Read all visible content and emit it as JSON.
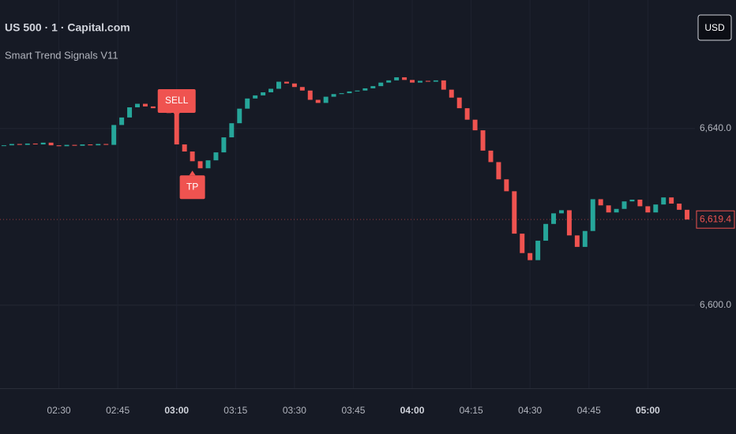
{
  "chart_data": {
    "type": "candlestick",
    "title": "US 500 · 1 · Capital.com",
    "subtitle": "Smart Trend Signals V11",
    "currency": "USD",
    "up_color": "#26a69a",
    "down_color": "#ef5350",
    "x": [
      "02:16",
      "02:18",
      "02:20",
      "02:22",
      "02:24",
      "02:26",
      "02:28",
      "02:30",
      "02:32",
      "02:34",
      "02:36",
      "02:38",
      "02:40",
      "02:42",
      "02:44",
      "02:46",
      "02:48",
      "02:50",
      "02:52",
      "02:54",
      "02:56",
      "02:58",
      "03:00",
      "03:02",
      "03:04",
      "03:06",
      "03:08",
      "03:10",
      "03:12",
      "03:14",
      "03:16",
      "03:18",
      "03:20",
      "03:22",
      "03:24",
      "03:26",
      "03:28",
      "03:30",
      "03:32",
      "03:34",
      "03:36",
      "03:38",
      "03:40",
      "03:42",
      "03:44",
      "03:46",
      "03:48",
      "03:50",
      "03:52",
      "03:54",
      "03:56",
      "03:58",
      "04:00",
      "04:02",
      "04:04",
      "04:06",
      "04:08",
      "04:10",
      "04:12",
      "04:14",
      "04:16",
      "04:18",
      "04:20",
      "04:22",
      "04:24",
      "04:26",
      "04:28",
      "04:30",
      "04:32",
      "04:34",
      "04:36",
      "04:38",
      "04:40",
      "04:42",
      "04:44",
      "04:46",
      "04:48",
      "04:50",
      "04:52",
      "04:54",
      "04:56",
      "04:58",
      "05:00",
      "05:02",
      "05:04",
      "05:06",
      "05:08",
      "05:10"
    ],
    "close": [
      6636.2,
      6636.5,
      6636.3,
      6636.6,
      6636.4,
      6636.8,
      6636.2,
      6636.0,
      6636.3,
      6636.1,
      6636.4,
      6636.2,
      6636.5,
      6636.3,
      6640.8,
      6642.5,
      6644.8,
      6645.6,
      6645.0,
      6644.6,
      6644.2,
      6643.5,
      6636.4,
      6634.8,
      6632.6,
      6631.0,
      6632.8,
      6634.6,
      6638.0,
      6641.2,
      6644.5,
      6646.8,
      6647.5,
      6648.2,
      6649.0,
      6650.6,
      6650.2,
      6649.4,
      6648.6,
      6646.5,
      6645.8,
      6647.2,
      6647.8,
      6648.0,
      6648.4,
      6648.6,
      6649.1,
      6649.6,
      6650.4,
      6650.9,
      6651.6,
      6651.0,
      6650.4,
      6650.8,
      6650.6,
      6650.9,
      6648.8,
      6647.0,
      6644.6,
      6642.0,
      6639.6,
      6635.0,
      6632.4,
      6628.5,
      6625.8,
      6616.2,
      6611.8,
      6610.2,
      6614.6,
      6618.4,
      6620.8,
      6621.5,
      6615.8,
      6613.2,
      6616.8,
      6624.0,
      6622.6,
      6621.0,
      6621.8,
      6623.5,
      6623.9,
      6622.4,
      6621.0,
      6622.8,
      6624.4,
      6623.0,
      6621.6,
      6619.4
    ],
    "last_label": "6,619.4",
    "annotations": [
      {
        "text": "SELL",
        "x": "03:00",
        "side": "above"
      },
      {
        "text": "TP",
        "x": "03:04",
        "side": "below"
      }
    ],
    "xlim": [
      "02:15",
      "05:12"
    ],
    "xticks": [
      "02:30",
      "02:45",
      "03:00",
      "03:15",
      "03:30",
      "03:45",
      "04:00",
      "04:15",
      "04:30",
      "04:45",
      "05:00"
    ],
    "ylim": [
      6581.2,
      6669.1
    ],
    "yticks": [
      {
        "value": 6600,
        "label": "6,600.0"
      },
      {
        "value": 6640,
        "label": "6,640.0"
      }
    ],
    "grid": true
  }
}
